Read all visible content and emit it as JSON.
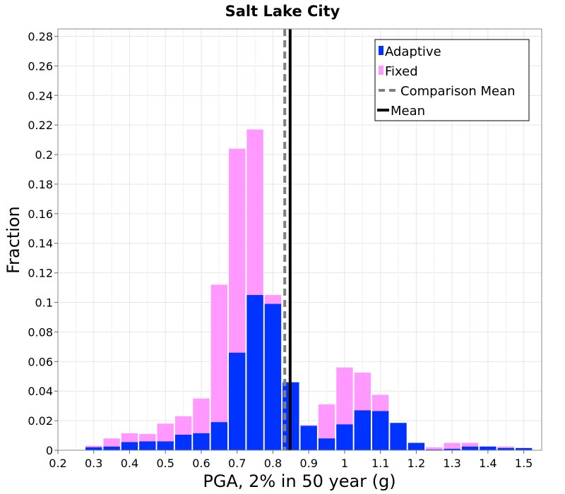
{
  "chart_data": {
    "type": "bar",
    "title": "Salt Lake City",
    "xlabel": "PGA, 2% in 50 year (g)",
    "ylabel": "Fraction",
    "xlim": [
      0.2,
      1.55
    ],
    "ylim": [
      0,
      0.285
    ],
    "bin_width": 0.05,
    "xticks": [
      "0.2",
      "0.3",
      "0.4",
      "0.5",
      "0.6",
      "0.7",
      "0.8",
      "0.9",
      "1",
      "1.1",
      "1.2",
      "1.3",
      "1.4",
      "1.5"
    ],
    "xtick_values": [
      0.2,
      0.3,
      0.4,
      0.5,
      0.6,
      0.7,
      0.8,
      0.9,
      1.0,
      1.1,
      1.2,
      1.3,
      1.4,
      1.5
    ],
    "yticks": [
      "0",
      "0.02",
      "0.04",
      "0.06",
      "0.08",
      "0.1",
      "0.12",
      "0.14",
      "0.16",
      "0.18",
      "0.2",
      "0.22",
      "0.24",
      "0.26",
      "0.28"
    ],
    "ytick_values": [
      0,
      0.02,
      0.04,
      0.06,
      0.08,
      0.1,
      0.12,
      0.14,
      0.16,
      0.18,
      0.2,
      0.22,
      0.24,
      0.26,
      0.28
    ],
    "bin_centers": [
      0.25,
      0.3,
      0.35,
      0.4,
      0.45,
      0.5,
      0.55,
      0.6,
      0.65,
      0.7,
      0.75,
      0.8,
      0.85,
      0.9,
      0.95,
      1.0,
      1.05,
      1.1,
      1.15,
      1.2,
      1.25,
      1.3,
      1.35,
      1.4,
      1.45,
      1.5
    ],
    "series": [
      {
        "name": "Fixed",
        "color": "#ff99ff",
        "values": [
          0,
          0.003,
          0.008,
          0.0115,
          0.011,
          0.018,
          0.023,
          0.035,
          0.112,
          0.204,
          0.217,
          0.105,
          0.0325,
          0.017,
          0.031,
          0.056,
          0.0525,
          0.0375,
          0.01,
          0.001,
          0.002,
          0.005,
          0.005,
          0.0025,
          0.0025,
          0.0005
        ]
      },
      {
        "name": "Adaptive",
        "color": "#0033ff",
        "values": [
          0,
          0.002,
          0.0025,
          0.0055,
          0.006,
          0.006,
          0.0105,
          0.0115,
          0.019,
          0.066,
          0.105,
          0.099,
          0.046,
          0.0165,
          0.008,
          0.0175,
          0.027,
          0.0265,
          0.0185,
          0.005,
          0.0005,
          0.001,
          0.0025,
          0.0025,
          0.0015,
          0.0015
        ]
      }
    ],
    "vlines": [
      {
        "name": "Comparison Mean",
        "x": 0.833,
        "style": "dashed",
        "color": "#808080"
      },
      {
        "name": "Mean",
        "x": 0.848,
        "style": "solid",
        "color": "#000000"
      }
    ],
    "legend": {
      "position": "top-right",
      "entries": [
        {
          "label": "Adaptive",
          "kind": "bar",
          "color": "#0033ff"
        },
        {
          "label": "Fixed",
          "kind": "bar",
          "color": "#ff99ff"
        },
        {
          "label": "Comparison Mean",
          "kind": "dashed",
          "color": "#808080"
        },
        {
          "label": "Mean",
          "kind": "line",
          "color": "#000000"
        }
      ]
    },
    "grid": true
  }
}
